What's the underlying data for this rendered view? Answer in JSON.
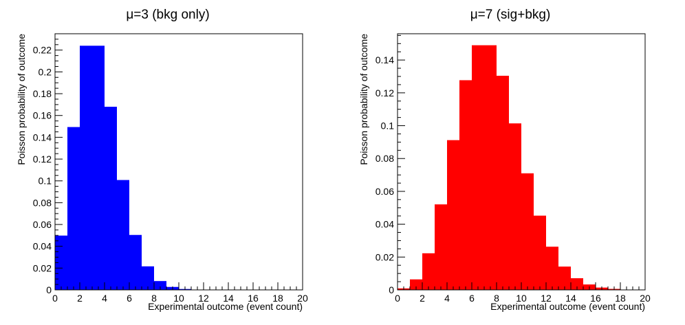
{
  "chart_data": [
    {
      "type": "bar",
      "title": "μ=3 (bkg only)",
      "xlabel": "Experimental outcome (event count)",
      "ylabel": "Poisson probability of outcome",
      "xlim": [
        0,
        20
      ],
      "ylim": [
        0,
        0.235
      ],
      "bin_width": 1,
      "bin_edges_start": [
        0,
        1,
        2,
        3,
        4,
        5,
        6,
        7,
        8,
        9,
        10,
        11,
        12,
        13,
        14,
        15,
        16,
        17,
        18,
        19
      ],
      "values": [
        0.0498,
        0.1494,
        0.224,
        0.224,
        0.168,
        0.1008,
        0.0504,
        0.0216,
        0.0081,
        0.0027,
        0.0008,
        0.0002,
        0.0001,
        0,
        0,
        0,
        0,
        0,
        0,
        0
      ],
      "color": "#0000ff",
      "xticks": [
        "0",
        "2",
        "4",
        "6",
        "8",
        "10",
        "12",
        "14",
        "16",
        "18",
        "20"
      ],
      "xtick_values": [
        0,
        2,
        4,
        6,
        8,
        10,
        12,
        14,
        16,
        18,
        20
      ],
      "yticks": [
        "0",
        "0.02",
        "0.04",
        "0.06",
        "0.08",
        "0.1",
        "0.12",
        "0.14",
        "0.16",
        "0.18",
        "0.2",
        "0.22"
      ],
      "ytick_values": [
        0,
        0.02,
        0.04,
        0.06,
        0.08,
        0.1,
        0.12,
        0.14,
        0.16,
        0.18,
        0.2,
        0.22
      ],
      "grid": false,
      "legend": "none"
    },
    {
      "type": "bar",
      "title": "μ=7 (sig+bkg)",
      "xlabel": "Experimental outcome (event count)",
      "ylabel": "Poisson probability of outcome",
      "xlim": [
        0,
        20
      ],
      "ylim": [
        0,
        0.156
      ],
      "bin_width": 1,
      "bin_edges_start": [
        0,
        1,
        2,
        3,
        4,
        5,
        6,
        7,
        8,
        9,
        10,
        11,
        12,
        13,
        14,
        15,
        16,
        17,
        18,
        19
      ],
      "values": [
        0.0009,
        0.0064,
        0.0223,
        0.0521,
        0.0912,
        0.1277,
        0.149,
        0.149,
        0.1304,
        0.1014,
        0.071,
        0.0452,
        0.0263,
        0.0142,
        0.0071,
        0.0033,
        0.0014,
        0.0006,
        0.0002,
        0.0001
      ],
      "color": "#ff0000",
      "xticks": [
        "0",
        "2",
        "4",
        "6",
        "8",
        "10",
        "12",
        "14",
        "16",
        "18",
        "20"
      ],
      "xtick_values": [
        0,
        2,
        4,
        6,
        8,
        10,
        12,
        14,
        16,
        18,
        20
      ],
      "yticks": [
        "0",
        "0.02",
        "0.04",
        "0.06",
        "0.08",
        "0.1",
        "0.12",
        "0.14"
      ],
      "ytick_values": [
        0,
        0.02,
        0.04,
        0.06,
        0.08,
        0.1,
        0.12,
        0.14
      ],
      "grid": false,
      "legend": "none"
    }
  ]
}
